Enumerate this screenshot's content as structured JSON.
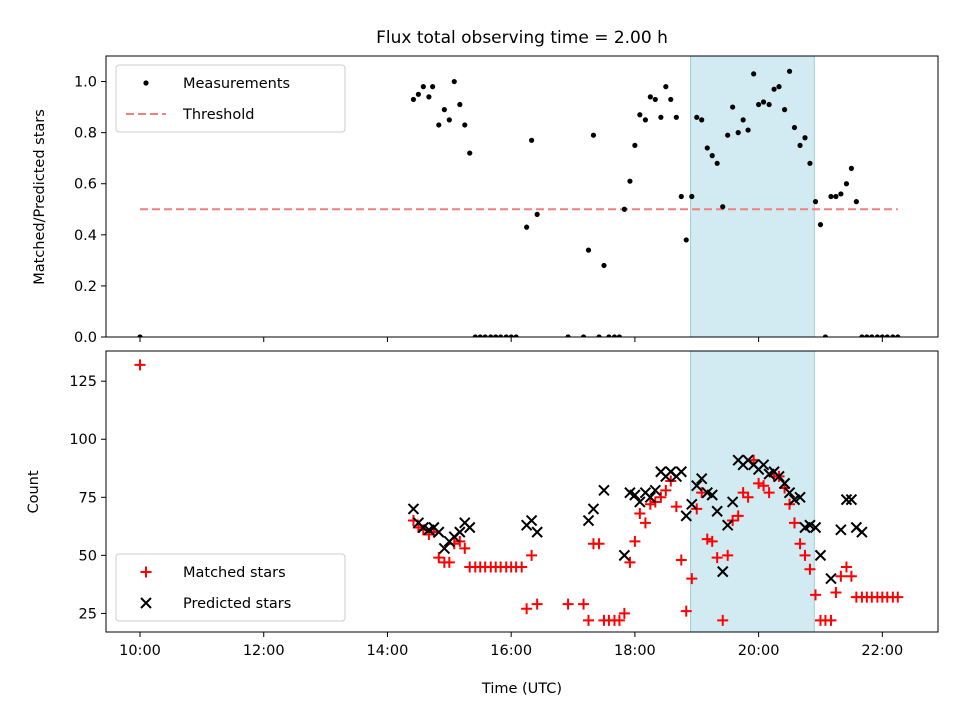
{
  "chart_data": {
    "title": "Flux total observing time = 2.00 h",
    "x_axis": {
      "label": "Time (UTC)",
      "range_hours": [
        9.45,
        22.9
      ],
      "ticks": [
        10,
        12,
        14,
        16,
        18,
        20,
        22
      ],
      "tick_labels": [
        "10:00",
        "12:00",
        "14:00",
        "16:00",
        "18:00",
        "20:00",
        "22:00"
      ]
    },
    "highlight_span_hours": [
      18.9,
      20.9
    ],
    "colors": {
      "measurements": "#000000",
      "threshold": "#f08080",
      "matched": "#ff0000",
      "predicted": "#000000",
      "highlight": "#add8e6"
    },
    "panels": [
      {
        "type": "scatter",
        "ylabel": "Matched/Predicted stars",
        "ylim": [
          0,
          1.1
        ],
        "yticks": [
          0.0,
          0.2,
          0.4,
          0.6,
          0.8,
          1.0
        ],
        "ytick_labels": [
          "0.0",
          "0.2",
          "0.4",
          "0.6",
          "0.8",
          "1.0"
        ],
        "legend_position": "upper-left",
        "legend": [
          "Measurements",
          "Threshold"
        ],
        "threshold": {
          "value": 0.5,
          "x_range": [
            10.0,
            22.25
          ]
        },
        "measurements": [
          [
            10.0,
            0.0
          ],
          [
            14.42,
            0.93
          ],
          [
            14.5,
            0.95
          ],
          [
            14.58,
            0.98
          ],
          [
            14.67,
            0.94
          ],
          [
            14.73,
            0.98
          ],
          [
            14.83,
            0.83
          ],
          [
            14.92,
            0.89
          ],
          [
            15.0,
            0.85
          ],
          [
            15.08,
            1.0
          ],
          [
            15.17,
            0.91
          ],
          [
            15.25,
            0.83
          ],
          [
            15.33,
            0.72
          ],
          [
            15.42,
            0.0
          ],
          [
            15.5,
            0.0
          ],
          [
            15.58,
            0.0
          ],
          [
            15.67,
            0.0
          ],
          [
            15.75,
            0.0
          ],
          [
            15.83,
            0.0
          ],
          [
            15.92,
            0.0
          ],
          [
            16.0,
            0.0
          ],
          [
            16.08,
            0.0
          ],
          [
            16.25,
            0.43
          ],
          [
            16.33,
            0.77
          ],
          [
            16.42,
            0.48
          ],
          [
            16.92,
            0.0
          ],
          [
            17.17,
            0.0
          ],
          [
            17.25,
            0.34
          ],
          [
            17.33,
            0.79
          ],
          [
            17.42,
            0.0
          ],
          [
            17.5,
            0.28
          ],
          [
            17.58,
            0.0
          ],
          [
            17.67,
            0.0
          ],
          [
            17.75,
            0.0
          ],
          [
            17.83,
            0.5
          ],
          [
            17.92,
            0.61
          ],
          [
            18.0,
            0.75
          ],
          [
            18.08,
            0.87
          ],
          [
            18.17,
            0.85
          ],
          [
            18.25,
            0.94
          ],
          [
            18.33,
            0.93
          ],
          [
            18.42,
            0.86
          ],
          [
            18.5,
            0.98
          ],
          [
            18.58,
            0.93
          ],
          [
            18.67,
            0.86
          ],
          [
            18.75,
            0.55
          ],
          [
            18.83,
            0.38
          ],
          [
            18.92,
            0.55
          ],
          [
            19.0,
            0.86
          ],
          [
            19.08,
            0.85
          ],
          [
            19.17,
            0.74
          ],
          [
            19.25,
            0.71
          ],
          [
            19.33,
            0.68
          ],
          [
            19.42,
            0.51
          ],
          [
            19.5,
            0.79
          ],
          [
            19.58,
            0.9
          ],
          [
            19.67,
            0.8
          ],
          [
            19.75,
            0.85
          ],
          [
            19.83,
            0.81
          ],
          [
            19.92,
            1.03
          ],
          [
            20.0,
            0.91
          ],
          [
            20.08,
            0.92
          ],
          [
            20.17,
            0.91
          ],
          [
            20.25,
            0.97
          ],
          [
            20.33,
            0.98
          ],
          [
            20.42,
            0.89
          ],
          [
            20.5,
            1.04
          ],
          [
            20.58,
            0.82
          ],
          [
            20.67,
            0.75
          ],
          [
            20.75,
            0.78
          ],
          [
            20.83,
            0.68
          ],
          [
            20.92,
            0.53
          ],
          [
            21.0,
            0.44
          ],
          [
            21.08,
            0.0
          ],
          [
            21.17,
            0.55
          ],
          [
            21.25,
            0.55
          ],
          [
            21.33,
            0.56
          ],
          [
            21.42,
            0.6
          ],
          [
            21.5,
            0.66
          ],
          [
            21.58,
            0.53
          ],
          [
            21.67,
            0.0
          ],
          [
            21.75,
            0.0
          ],
          [
            21.83,
            0.0
          ],
          [
            21.92,
            0.0
          ],
          [
            22.0,
            0.0
          ],
          [
            22.08,
            0.0
          ],
          [
            22.17,
            0.0
          ],
          [
            22.25,
            0.0
          ]
        ]
      },
      {
        "type": "scatter",
        "ylabel": "Count",
        "ylim": [
          17,
          138
        ],
        "yticks": [
          25,
          50,
          75,
          100,
          125
        ],
        "ytick_labels": [
          "25",
          "50",
          "75",
          "100",
          "125"
        ],
        "legend_position": "lower-left",
        "legend": [
          "Matched stars",
          "Predicted stars"
        ],
        "matched": [
          [
            10.0,
            132
          ],
          [
            14.42,
            65
          ],
          [
            14.5,
            62
          ],
          [
            14.58,
            61
          ],
          [
            14.67,
            59
          ],
          [
            14.75,
            60
          ],
          [
            14.83,
            49
          ],
          [
            14.92,
            47
          ],
          [
            15.0,
            47
          ],
          [
            15.08,
            55
          ],
          [
            15.17,
            56
          ],
          [
            15.25,
            53
          ],
          [
            15.33,
            45
          ],
          [
            15.42,
            45
          ],
          [
            15.5,
            45
          ],
          [
            15.58,
            45
          ],
          [
            15.67,
            45
          ],
          [
            15.75,
            45
          ],
          [
            15.83,
            45
          ],
          [
            15.92,
            45
          ],
          [
            16.0,
            45
          ],
          [
            16.08,
            45
          ],
          [
            16.17,
            45
          ],
          [
            16.25,
            27
          ],
          [
            16.33,
            50
          ],
          [
            16.42,
            29
          ],
          [
            16.92,
            29
          ],
          [
            17.17,
            29
          ],
          [
            17.25,
            22
          ],
          [
            17.33,
            55
          ],
          [
            17.42,
            55
          ],
          [
            17.5,
            22
          ],
          [
            17.58,
            22
          ],
          [
            17.67,
            22
          ],
          [
            17.75,
            22
          ],
          [
            17.83,
            25
          ],
          [
            17.92,
            47
          ],
          [
            18.0,
            56
          ],
          [
            18.08,
            68
          ],
          [
            18.17,
            64
          ],
          [
            18.25,
            72
          ],
          [
            18.33,
            73
          ],
          [
            18.42,
            75
          ],
          [
            18.5,
            78
          ],
          [
            18.58,
            82
          ],
          [
            18.67,
            71
          ],
          [
            18.75,
            48
          ],
          [
            18.83,
            26
          ],
          [
            18.92,
            40
          ],
          [
            19.0,
            70
          ],
          [
            19.08,
            77
          ],
          [
            19.17,
            57
          ],
          [
            19.25,
            56
          ],
          [
            19.33,
            49
          ],
          [
            19.42,
            22
          ],
          [
            19.5,
            50
          ],
          [
            19.58,
            65
          ],
          [
            19.67,
            67
          ],
          [
            19.75,
            77
          ],
          [
            19.83,
            75
          ],
          [
            19.92,
            91
          ],
          [
            20.0,
            81
          ],
          [
            20.08,
            80
          ],
          [
            20.17,
            77
          ],
          [
            20.25,
            84
          ],
          [
            20.33,
            84
          ],
          [
            20.42,
            79
          ],
          [
            20.5,
            72
          ],
          [
            20.58,
            64
          ],
          [
            20.67,
            55
          ],
          [
            20.75,
            50
          ],
          [
            20.83,
            44
          ],
          [
            20.92,
            33
          ],
          [
            21.0,
            22
          ],
          [
            21.08,
            22
          ],
          [
            21.17,
            22
          ],
          [
            21.25,
            34
          ],
          [
            21.33,
            41
          ],
          [
            21.42,
            45
          ],
          [
            21.5,
            41
          ],
          [
            21.58,
            32
          ],
          [
            21.67,
            32
          ],
          [
            21.75,
            32
          ],
          [
            21.83,
            32
          ],
          [
            21.92,
            32
          ],
          [
            22.0,
            32
          ],
          [
            22.08,
            32
          ],
          [
            22.17,
            32
          ],
          [
            22.25,
            32
          ]
        ],
        "predicted": [
          [
            14.42,
            70
          ],
          [
            14.5,
            64
          ],
          [
            14.58,
            62
          ],
          [
            14.67,
            61
          ],
          [
            14.75,
            62
          ],
          [
            14.83,
            60
          ],
          [
            14.92,
            53
          ],
          [
            15.0,
            56
          ],
          [
            15.08,
            58
          ],
          [
            15.17,
            60
          ],
          [
            15.25,
            64
          ],
          [
            15.33,
            62
          ],
          [
            16.25,
            63
          ],
          [
            16.33,
            65
          ],
          [
            16.42,
            60
          ],
          [
            17.25,
            65
          ],
          [
            17.33,
            70
          ],
          [
            17.5,
            78
          ],
          [
            17.83,
            50
          ],
          [
            17.92,
            77
          ],
          [
            18.0,
            76
          ],
          [
            18.08,
            73
          ],
          [
            18.17,
            77
          ],
          [
            18.25,
            75
          ],
          [
            18.33,
            78
          ],
          [
            18.42,
            86
          ],
          [
            18.5,
            84
          ],
          [
            18.58,
            86
          ],
          [
            18.67,
            84
          ],
          [
            18.75,
            86
          ],
          [
            18.83,
            67
          ],
          [
            18.92,
            72
          ],
          [
            19.0,
            80
          ],
          [
            19.08,
            83
          ],
          [
            19.17,
            77
          ],
          [
            19.25,
            76
          ],
          [
            19.33,
            69
          ],
          [
            19.42,
            43
          ],
          [
            19.5,
            63
          ],
          [
            19.58,
            73
          ],
          [
            19.67,
            91
          ],
          [
            19.75,
            89
          ],
          [
            19.83,
            91
          ],
          [
            19.92,
            89
          ],
          [
            20.0,
            87
          ],
          [
            20.08,
            89
          ],
          [
            20.17,
            85
          ],
          [
            20.25,
            86
          ],
          [
            20.33,
            84
          ],
          [
            20.42,
            81
          ],
          [
            20.5,
            77
          ],
          [
            20.58,
            74
          ],
          [
            20.67,
            75
          ],
          [
            20.75,
            62
          ],
          [
            20.83,
            63
          ],
          [
            20.92,
            62
          ],
          [
            21.0,
            50
          ],
          [
            21.17,
            40
          ],
          [
            21.33,
            61
          ],
          [
            21.42,
            74
          ],
          [
            21.5,
            74
          ],
          [
            21.58,
            62
          ],
          [
            21.67,
            60
          ]
        ]
      }
    ]
  }
}
